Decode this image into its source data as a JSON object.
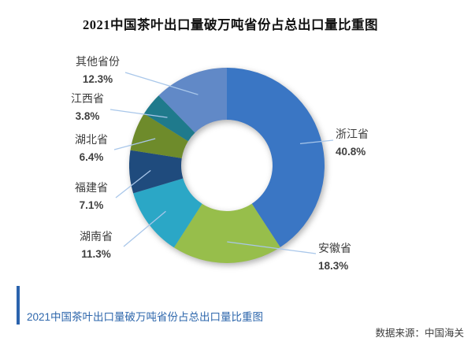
{
  "title": "2021中国茶叶出口量破万吨省份占总出口量比重图",
  "caption": "2021中国茶叶出口量破万吨省份占总出口量比重图",
  "source": "数据来源：中国海关",
  "colors": {
    "leader_line": "#a9c7ea",
    "caption_accent": "#2a63ad",
    "caption_text": "#2e67ac",
    "title_text": "#111111",
    "label_text": "#3d3d3d"
  },
  "chart_data": {
    "type": "pie",
    "subtype": "donut",
    "title": "2021中国茶叶出口量破万吨省份占总出口量比重图",
    "start_angle_deg": 0,
    "direction": "clockwise",
    "legend_position": "none",
    "categories": [
      "浙江省",
      "安徽省",
      "湖南省",
      "福建省",
      "湖北省",
      "江西省",
      "其他省份"
    ],
    "values": [
      40.8,
      18.3,
      11.3,
      7.1,
      6.4,
      3.8,
      12.3
    ],
    "value_labels": [
      "40.8%",
      "18.3%",
      "11.3%",
      "7.1%",
      "6.4%",
      "3.8%",
      "12.3%"
    ],
    "slice_colors": [
      "#3a76c4",
      "#97be4b",
      "#2ba7c6",
      "#1f4b7d",
      "#6e8b2b",
      "#1f7a8c",
      "#6189c7"
    ],
    "data_source": "中国海关"
  }
}
